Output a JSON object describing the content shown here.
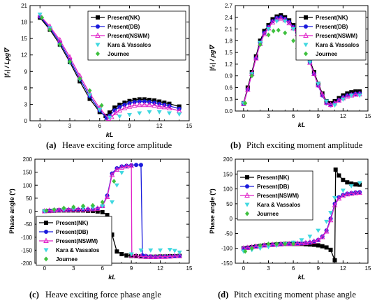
{
  "chart_data": [
    {
      "type": "line",
      "caption_letter": "(a)",
      "caption": "Heave exciting force amplitude",
      "xlabel": "kL",
      "ylabel": "|f₃| / Lρg∇",
      "xlim": [
        -1,
        15
      ],
      "ylim": [
        0,
        21
      ],
      "xticks": [
        0,
        3,
        6,
        9,
        12,
        15
      ],
      "yticks": [
        0,
        3,
        6,
        9,
        12,
        15,
        18,
        21
      ],
      "legend_position": "top-right",
      "series": [
        {
          "name": "Present(NK)",
          "color": "#000000",
          "marker": "square",
          "x": [
            0,
            1,
            2,
            3,
            4,
            5,
            6,
            6.6,
            7,
            7.5,
            8,
            8.5,
            9,
            9.5,
            10,
            10.5,
            11,
            11.5,
            12,
            12.5,
            13,
            14
          ],
          "y": [
            18.8,
            16.6,
            13.9,
            10.7,
            7.2,
            4.0,
            1.6,
            0.9,
            1.5,
            2.4,
            2.9,
            3.3,
            3.6,
            3.8,
            3.9,
            3.9,
            3.8,
            3.7,
            3.5,
            3.3,
            3.1,
            2.6
          ]
        },
        {
          "name": "Present(DB)",
          "color": "#1a1adc",
          "marker": "circle",
          "x": [
            0,
            1,
            2,
            3,
            4,
            5,
            6,
            6.7,
            7,
            7.5,
            8,
            8.5,
            9,
            9.5,
            10,
            10.5,
            11,
            11.5,
            12,
            12.5,
            13,
            14
          ],
          "y": [
            19.0,
            16.9,
            14.3,
            11.1,
            7.7,
            4.5,
            1.9,
            0.5,
            0.9,
            1.9,
            2.5,
            2.9,
            3.2,
            3.4,
            3.5,
            3.5,
            3.4,
            3.3,
            3.1,
            2.9,
            2.7,
            2.2
          ]
        },
        {
          "name": "Present(NSWM)",
          "color": "#e020c8",
          "marker": "triangle",
          "x": [
            0,
            1,
            2,
            3,
            4,
            5,
            6,
            6.9,
            7.2,
            7.6,
            8,
            8.5,
            9,
            9.5,
            10,
            10.5,
            11,
            11.5,
            12,
            12.5,
            13,
            14
          ],
          "y": [
            19.2,
            17.2,
            14.7,
            11.6,
            8.2,
            5.0,
            2.3,
            0.4,
            0.7,
            1.4,
            1.9,
            2.3,
            2.6,
            2.8,
            2.9,
            2.9,
            2.9,
            2.8,
            2.6,
            2.5,
            2.3,
            1.8
          ]
        },
        {
          "name": "Kara & Vassalos",
          "color": "#40d8e0",
          "marker": "triangle-down",
          "x": [
            0,
            1,
            2,
            3,
            4,
            5,
            6,
            7,
            8,
            9,
            10,
            11,
            12,
            13,
            14
          ],
          "y": [
            19.4,
            16.9,
            13.8,
            10.6,
            7.5,
            4.7,
            2.0,
            0.6,
            0.8,
            1.1,
            1.4,
            1.6,
            1.6,
            1.4,
            1.2
          ]
        },
        {
          "name": "Journee",
          "color": "#3ec03e",
          "marker": "diamond",
          "x": [
            0.2,
            1,
            2,
            3,
            4,
            5,
            6.2
          ],
          "y": [
            18.8,
            16.6,
            13.9,
            10.8,
            7.7,
            5.5,
            2.8
          ]
        }
      ]
    },
    {
      "type": "line",
      "caption_letter": "(b)",
      "caption": "Pitch exciting moment amplitude",
      "xlabel": "kL",
      "ylabel": "|f₅| / ρg∇",
      "xlim": [
        -1,
        15
      ],
      "ylim": [
        0.0,
        2.7
      ],
      "xticks": [
        0,
        3,
        6,
        9,
        12,
        15
      ],
      "yticks": [
        0.0,
        0.3,
        0.6,
        0.9,
        1.2,
        1.5,
        1.8,
        2.1,
        2.4,
        2.7
      ],
      "legend_position": "top-right",
      "series": [
        {
          "name": "Present(NK)",
          "color": "#000000",
          "marker": "square",
          "x": [
            0,
            0.5,
            1,
            1.5,
            2,
            2.5,
            3,
            3.5,
            4,
            4.5,
            5,
            5.5,
            6,
            6.5,
            7,
            7.5,
            8,
            8.5,
            9,
            9.5,
            10,
            10.5,
            11,
            11.5,
            12,
            12.5,
            13,
            13.5,
            14
          ],
          "y": [
            0.2,
            0.6,
            1.0,
            1.4,
            1.8,
            2.05,
            2.2,
            2.35,
            2.42,
            2.45,
            2.4,
            2.32,
            2.2,
            2.05,
            1.85,
            1.6,
            1.3,
            1.0,
            0.7,
            0.45,
            0.25,
            0.2,
            0.25,
            0.33,
            0.4,
            0.45,
            0.48,
            0.5,
            0.5
          ]
        },
        {
          "name": "Present(DB)",
          "color": "#1a1adc",
          "marker": "circle",
          "x": [
            0,
            0.5,
            1,
            1.5,
            2,
            2.5,
            3,
            3.5,
            4,
            4.5,
            5,
            5.5,
            6,
            6.5,
            7,
            7.5,
            8,
            8.5,
            9,
            9.5,
            10,
            10.5,
            11,
            11.5,
            12,
            12.5,
            13,
            13.5,
            14
          ],
          "y": [
            0.18,
            0.55,
            0.95,
            1.35,
            1.75,
            2.0,
            2.15,
            2.3,
            2.38,
            2.4,
            2.36,
            2.28,
            2.15,
            2.0,
            1.8,
            1.55,
            1.25,
            0.95,
            0.65,
            0.4,
            0.2,
            0.15,
            0.2,
            0.28,
            0.35,
            0.4,
            0.42,
            0.44,
            0.45
          ]
        },
        {
          "name": "Present(NSWM)",
          "color": "#e020c8",
          "marker": "triangle",
          "x": [
            0,
            0.5,
            1,
            1.5,
            2,
            2.5,
            3,
            3.5,
            4,
            4.5,
            5,
            5.5,
            6,
            6.5,
            7,
            7.5,
            8,
            8.5,
            9,
            9.5,
            10,
            10.5,
            11,
            11.5,
            12,
            12.5,
            13,
            13.5,
            14
          ],
          "y": [
            0.18,
            0.55,
            0.95,
            1.35,
            1.72,
            1.97,
            2.12,
            2.27,
            2.35,
            2.37,
            2.33,
            2.25,
            2.12,
            1.97,
            1.78,
            1.53,
            1.24,
            0.95,
            0.66,
            0.42,
            0.22,
            0.16,
            0.2,
            0.27,
            0.33,
            0.37,
            0.4,
            0.42,
            0.43
          ]
        },
        {
          "name": "Kara & Vassalos",
          "color": "#40d8e0",
          "marker": "triangle-down",
          "x": [
            0,
            1,
            2,
            3,
            4,
            5,
            6,
            7,
            8,
            9,
            10,
            11,
            12,
            13,
            14
          ],
          "y": [
            0.2,
            0.95,
            1.75,
            2.1,
            2.3,
            2.3,
            2.1,
            1.75,
            1.25,
            0.7,
            0.25,
            0.15,
            0.3,
            0.4,
            0.4
          ]
        },
        {
          "name": "Journee",
          "color": "#3ec03e",
          "marker": "diamond",
          "x": [
            0.2,
            1,
            2,
            3,
            3.6,
            4.2,
            5,
            6,
            6.5
          ],
          "y": [
            0.2,
            0.9,
            1.7,
            1.95,
            2.05,
            2.07,
            2.0,
            1.8,
            1.6
          ]
        }
      ]
    },
    {
      "type": "line",
      "caption_letter": "(c)",
      "caption": "Heave exciting force phase angle",
      "xlabel": "kL",
      "ylabel": "Phase angle (°)",
      "xlim": [
        -1,
        15
      ],
      "ylim": [
        -200,
        200
      ],
      "xticks": [
        0,
        3,
        6,
        9,
        12,
        15
      ],
      "yticks": [
        -200,
        -150,
        -100,
        -50,
        0,
        50,
        100,
        150,
        200
      ],
      "legend_position": "bottom-left",
      "series": [
        {
          "name": "Present(NK)",
          "color": "#000000",
          "marker": "square",
          "x": [
            0,
            0.5,
            1,
            1.5,
            2,
            2.5,
            3,
            3.5,
            4,
            4.5,
            5,
            5.5,
            6,
            6.5,
            7,
            7.5,
            8,
            8.5,
            9,
            9.5,
            10,
            10.5,
            11,
            11.5,
            12,
            12.5,
            13,
            13.5,
            14
          ],
          "y": [
            0,
            1,
            2,
            3,
            3,
            3,
            3,
            3,
            3,
            2,
            1,
            -1,
            -4,
            -15,
            -90,
            -155,
            -165,
            -170,
            -172,
            -173,
            -174,
            -175,
            -175,
            -175,
            -174,
            -174,
            -173,
            -173,
            -172
          ]
        },
        {
          "name": "Present(DB)",
          "color": "#1a1adc",
          "marker": "circle",
          "x": [
            0,
            0.5,
            1,
            1.5,
            2,
            2.5,
            3,
            3.5,
            4,
            4.5,
            5,
            5.5,
            6,
            6.5,
            7,
            7.5,
            8,
            8.5,
            9,
            9.5,
            10,
            10.15,
            10.5,
            11,
            11.5,
            12,
            12.5,
            13,
            13.5,
            14
          ],
          "y": [
            0,
            2,
            3,
            4,
            5,
            5,
            6,
            6,
            6,
            7,
            8,
            10,
            20,
            60,
            145,
            165,
            172,
            175,
            177,
            178,
            178,
            -170,
            -172,
            -174,
            -175,
            -175,
            -174,
            -174,
            -173,
            -172
          ]
        },
        {
          "name": "Present(NSWM)",
          "color": "#e020c8",
          "marker": "triangle",
          "x": [
            0,
            0.5,
            1,
            1.5,
            2,
            2.5,
            3,
            3.5,
            4,
            4.5,
            5,
            5.5,
            6,
            6.5,
            7,
            7.5,
            8,
            8.5,
            9,
            9.05,
            9.5,
            10,
            10.5,
            11,
            11.5,
            12,
            12.5,
            13,
            13.5,
            14
          ],
          "y": [
            0,
            2,
            3,
            4,
            5,
            5,
            6,
            6,
            6,
            7,
            8,
            10,
            20,
            55,
            140,
            160,
            168,
            172,
            175,
            -170,
            -172,
            -174,
            -175,
            -176,
            -176,
            -175,
            -175,
            -174,
            -173,
            -172
          ]
        },
        {
          "name": "Kara & Vassalos",
          "color": "#40d8e0",
          "marker": "triangle-down",
          "x": [
            0,
            1,
            2,
            3,
            4,
            5,
            6,
            7,
            7.5,
            8,
            9,
            10,
            11,
            12,
            13,
            13.5,
            14
          ],
          "y": [
            0,
            3,
            6,
            10,
            12,
            15,
            20,
            35,
            100,
            148,
            -165,
            -150,
            -150,
            -150,
            -148,
            -152,
            -158
          ]
        },
        {
          "name": "Journee",
          "color": "#3ec03e",
          "marker": "diamond",
          "x": [
            0.2,
            1,
            2,
            3,
            4,
            5,
            6,
            7.2
          ],
          "y": [
            2,
            6,
            12,
            16,
            20,
            22,
            35,
            115
          ]
        }
      ]
    },
    {
      "type": "line",
      "caption_letter": "(d)",
      "caption": "Pitch exciting moment phase angle",
      "xlabel": "kL",
      "ylabel": "Phase angle (°)",
      "xlim": [
        -1,
        15
      ],
      "ylim": [
        -150,
        200
      ],
      "xticks": [
        0,
        3,
        6,
        9,
        12,
        15
      ],
      "yticks": [
        -150,
        -100,
        -50,
        0,
        50,
        100,
        150,
        200
      ],
      "legend_position": "top-left",
      "series": [
        {
          "name": "Present(NK)",
          "color": "#000000",
          "marker": "square",
          "x": [
            0,
            0.5,
            1,
            1.5,
            2,
            2.5,
            3,
            3.5,
            4,
            4.5,
            5,
            5.5,
            6,
            6.5,
            7,
            7.5,
            8,
            8.5,
            9,
            9.5,
            10,
            10.5,
            11,
            11.1,
            11.5,
            12,
            12.5,
            13,
            13.5,
            14
          ],
          "y": [
            -100,
            -98,
            -96,
            -94,
            -92,
            -90,
            -89,
            -88,
            -87,
            -86,
            -85,
            -85,
            -85,
            -85,
            -85,
            -86,
            -87,
            -88,
            -90,
            -93,
            -97,
            -105,
            -140,
            165,
            145,
            130,
            122,
            118,
            115,
            114
          ]
        },
        {
          "name": "Present(DB)",
          "color": "#1a1adc",
          "marker": "circle",
          "x": [
            0,
            0.5,
            1,
            1.5,
            2,
            2.5,
            3,
            3.5,
            4,
            4.5,
            5,
            5.5,
            6,
            6.5,
            7,
            7.5,
            8,
            8.5,
            9,
            9.5,
            10,
            10.5,
            11,
            11.5,
            12,
            12.5,
            13,
            13.5,
            14
          ],
          "y": [
            -100,
            -98,
            -96,
            -94,
            -92,
            -90,
            -89,
            -88,
            -87,
            -86,
            -85,
            -85,
            -84,
            -84,
            -83,
            -82,
            -80,
            -77,
            -72,
            -60,
            -40,
            0,
            50,
            72,
            80,
            84,
            86,
            88,
            89
          ]
        },
        {
          "name": "Present(NSWM)",
          "color": "#e020c8",
          "marker": "triangle",
          "x": [
            0,
            0.5,
            1,
            1.5,
            2,
            2.5,
            3,
            3.5,
            4,
            4.5,
            5,
            5.5,
            6,
            6.5,
            7,
            7.5,
            8,
            8.5,
            9,
            9.5,
            10,
            10.5,
            11,
            11.5,
            12,
            12.5,
            13,
            13.5,
            14
          ],
          "y": [
            -100,
            -98,
            -96,
            -94,
            -92,
            -90,
            -89,
            -88,
            -87,
            -86,
            -85,
            -85,
            -84,
            -84,
            -83,
            -82,
            -80,
            -77,
            -72,
            -62,
            -43,
            -5,
            45,
            68,
            77,
            82,
            84,
            86,
            87
          ]
        },
        {
          "name": "Kara & Vassalos",
          "color": "#40d8e0",
          "marker": "triangle-down",
          "x": [
            0,
            1,
            2,
            3,
            4,
            5,
            6,
            7,
            8,
            9,
            10,
            10.5,
            11,
            12,
            13,
            14
          ],
          "y": [
            -110,
            -105,
            -100,
            -95,
            -90,
            -85,
            -80,
            -72,
            -60,
            -40,
            -10,
            20,
            70,
            95,
            110,
            120
          ]
        },
        {
          "name": "Journee",
          "color": "#3ec03e",
          "marker": "diamond",
          "x": [
            0.2,
            1,
            2,
            3,
            4,
            5,
            6
          ],
          "y": [
            -110,
            -100,
            -90,
            -85,
            -85,
            -85,
            -85
          ]
        }
      ]
    }
  ]
}
